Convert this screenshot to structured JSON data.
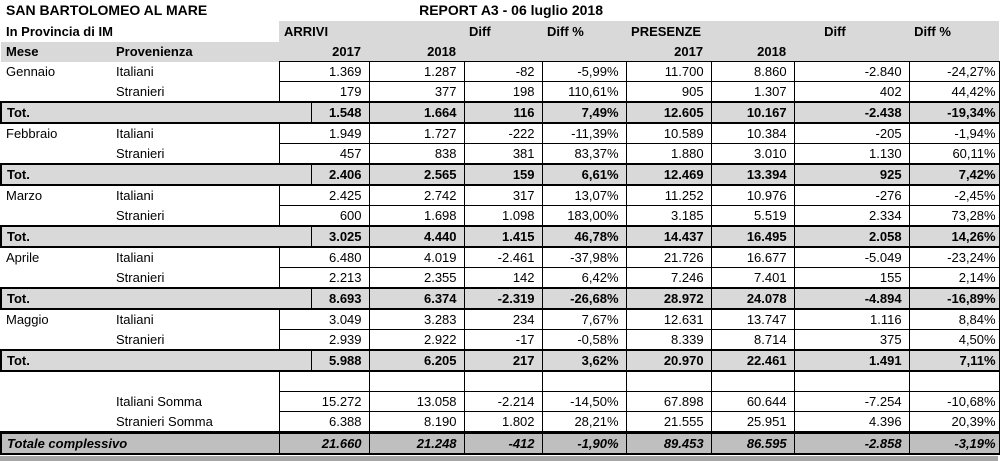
{
  "header": {
    "title": "SAN BARTOLOMEO AL MARE",
    "subtitle": "In Provincia di IM",
    "report": "REPORT A3 - 06 luglio 2018",
    "arrivi": "ARRIVI",
    "presenze": "PRESENZE",
    "diff": "Diff",
    "diff_pct": "Diff %",
    "mese": "Mese",
    "provenienza": "Provenienza",
    "y2017": "2017",
    "y2018": "2018"
  },
  "colors": {
    "header_gray": "#d9d9d9",
    "total_row_gray": "#d9d9d9",
    "grand_total_gray": "#bfbfbf",
    "border_black": "#000000",
    "bottom_band_gray": "#a6a6a6"
  },
  "rows": [
    {
      "type": "data",
      "mese": "Gennaio",
      "label": "Italiani",
      "values": [
        "1.369",
        "1.287",
        "-82",
        "-5,99%",
        "11.700",
        "8.860",
        "-2.840",
        "-24,27%"
      ]
    },
    {
      "type": "data",
      "mese": "",
      "label": "Stranieri",
      "values": [
        "179",
        "377",
        "198",
        "110,61%",
        "905",
        "1.307",
        "402",
        "44,42%"
      ]
    },
    {
      "type": "tot",
      "label": "Tot.",
      "values": [
        "1.548",
        "1.664",
        "116",
        "7,49%",
        "12.605",
        "10.167",
        "-2.438",
        "-19,34%"
      ]
    },
    {
      "type": "data",
      "mese": "Febbraio",
      "label": "Italiani",
      "values": [
        "1.949",
        "1.727",
        "-222",
        "-11,39%",
        "10.589",
        "10.384",
        "-205",
        "-1,94%"
      ]
    },
    {
      "type": "data",
      "mese": "",
      "label": "Stranieri",
      "values": [
        "457",
        "838",
        "381",
        "83,37%",
        "1.880",
        "3.010",
        "1.130",
        "60,11%"
      ]
    },
    {
      "type": "tot",
      "label": "Tot.",
      "values": [
        "2.406",
        "2.565",
        "159",
        "6,61%",
        "12.469",
        "13.394",
        "925",
        "7,42%"
      ]
    },
    {
      "type": "data",
      "mese": "Marzo",
      "label": "Italiani",
      "values": [
        "2.425",
        "2.742",
        "317",
        "13,07%",
        "11.252",
        "10.976",
        "-276",
        "-2,45%"
      ]
    },
    {
      "type": "data",
      "mese": "",
      "label": "Stranieri",
      "values": [
        "600",
        "1.698",
        "1.098",
        "183,00%",
        "3.185",
        "5.519",
        "2.334",
        "73,28%"
      ]
    },
    {
      "type": "tot",
      "label": "Tot.",
      "values": [
        "3.025",
        "4.440",
        "1.415",
        "46,78%",
        "14.437",
        "16.495",
        "2.058",
        "14,26%"
      ]
    },
    {
      "type": "data",
      "mese": "Aprile",
      "label": "Italiani",
      "values": [
        "6.480",
        "4.019",
        "-2.461",
        "-37,98%",
        "21.726",
        "16.677",
        "-5.049",
        "-23,24%"
      ]
    },
    {
      "type": "data",
      "mese": "",
      "label": "Stranieri",
      "values": [
        "2.213",
        "2.355",
        "142",
        "6,42%",
        "7.246",
        "7.401",
        "155",
        "2,14%"
      ]
    },
    {
      "type": "tot",
      "label": "Tot.",
      "values": [
        "8.693",
        "6.374",
        "-2.319",
        "-26,68%",
        "28.972",
        "24.078",
        "-4.894",
        "-16,89%"
      ]
    },
    {
      "type": "data",
      "mese": "Maggio",
      "label": "Italiani",
      "values": [
        "3.049",
        "3.283",
        "234",
        "7,67%",
        "12.631",
        "13.747",
        "1.116",
        "8,84%"
      ]
    },
    {
      "type": "data",
      "mese": "",
      "label": "Stranieri",
      "values": [
        "2.939",
        "2.922",
        "-17",
        "-0,58%",
        "8.339",
        "8.714",
        "375",
        "4,50%"
      ]
    },
    {
      "type": "tot",
      "label": "Tot.",
      "values": [
        "5.988",
        "6.205",
        "217",
        "3,62%",
        "20.970",
        "22.461",
        "1.491",
        "7,11%"
      ]
    },
    {
      "type": "spacer",
      "label": "",
      "values": [
        "",
        "",
        "",
        "",
        "",
        "",
        "",
        ""
      ]
    },
    {
      "type": "somma",
      "label": "Italiani Somma",
      "values": [
        "15.272",
        "13.058",
        "-2.214",
        "-14,50%",
        "67.898",
        "60.644",
        "-7.254",
        "-10,68%"
      ]
    },
    {
      "type": "somma",
      "label": "Stranieri Somma",
      "values": [
        "6.388",
        "8.190",
        "1.802",
        "28,21%",
        "21.555",
        "25.951",
        "4.396",
        "20,39%"
      ]
    },
    {
      "type": "grand",
      "label": "Totale complessivo",
      "values": [
        "21.660",
        "21.248",
        "-412",
        "-1,90%",
        "89.453",
        "86.595",
        "-2.858",
        "-3,19%"
      ]
    }
  ]
}
